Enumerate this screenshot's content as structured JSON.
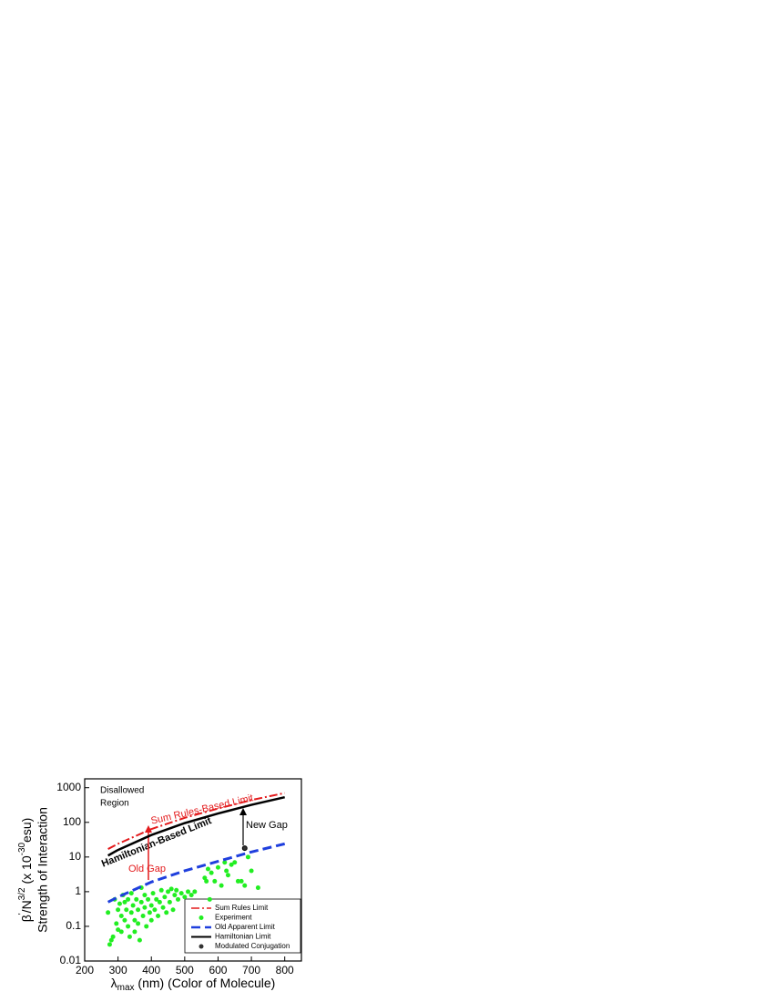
{
  "chart_data": {
    "type": "line",
    "y_label_parts": [
      "β",
      "'",
      "/N",
      "3/2",
      " (x 10",
      "-30",
      "esu)"
    ],
    "y_label_2": "Strength of Interaction",
    "x_label_parts": [
      "λ",
      "max",
      " (nm) (Color of Molecule)"
    ],
    "xlim": [
      200,
      850
    ],
    "xticks": [
      200,
      300,
      400,
      500,
      600,
      700,
      800
    ],
    "ylim": [
      0.01,
      1800
    ],
    "yticks": [
      0.01,
      0.1,
      1,
      10,
      100,
      1000
    ],
    "log_y": true,
    "legend": "lower right",
    "annotations": {
      "disallowed": [
        "Disallowed",
        "Region"
      ],
      "sum_rules": "Sum Rules-Based Limit",
      "hamiltonian": "Hamiltonian-Based Limit",
      "old_gap": "Old Gap",
      "new_gap": "New Gap"
    },
    "series": [
      {
        "name": "Sum Rules Limit",
        "kind": "line",
        "dash": "dashdot",
        "color": "#e31a1c",
        "x": [
          270,
          300,
          400,
          500,
          600,
          700,
          800
        ],
        "values": [
          17,
          24,
          64,
          135,
          250,
          440,
          700
        ]
      },
      {
        "name": "Experiment",
        "kind": "scatter",
        "color": "#22ee22",
        "x": [
          270,
          275,
          280,
          285,
          290,
          295,
          300,
          300,
          305,
          310,
          310,
          315,
          320,
          320,
          325,
          330,
          330,
          335,
          340,
          340,
          345,
          350,
          350,
          355,
          360,
          360,
          365,
          370,
          370,
          375,
          380,
          380,
          385,
          390,
          395,
          400,
          400,
          405,
          410,
          415,
          420,
          425,
          430,
          435,
          440,
          445,
          450,
          455,
          460,
          465,
          470,
          475,
          480,
          490,
          500,
          510,
          520,
          530,
          560,
          565,
          570,
          575,
          580,
          590,
          600,
          610,
          620,
          625,
          630,
          640,
          650,
          660,
          670,
          680,
          690,
          700,
          720
        ],
        "values": [
          0.25,
          0.03,
          0.04,
          0.05,
          0.6,
          0.12,
          0.08,
          0.3,
          0.45,
          0.07,
          0.2,
          0.8,
          0.5,
          0.15,
          0.3,
          0.1,
          0.6,
          0.05,
          0.25,
          0.9,
          0.4,
          0.15,
          0.07,
          0.6,
          0.3,
          0.12,
          0.04,
          0.5,
          1.3,
          0.2,
          0.8,
          0.35,
          0.1,
          0.6,
          0.25,
          0.4,
          0.15,
          0.9,
          0.3,
          0.6,
          0.2,
          0.5,
          1.1,
          0.35,
          0.7,
          0.25,
          1.0,
          0.5,
          1.2,
          0.3,
          0.8,
          1.1,
          0.6,
          0.9,
          0.7,
          1.0,
          0.8,
          1.0,
          2.5,
          2,
          4.5,
          0.6,
          3.5,
          2,
          5,
          1.5,
          7,
          4,
          3,
          6,
          7,
          2,
          2,
          1.5,
          10,
          4,
          1.3
        ]
      },
      {
        "name": "Old Apparent Limit",
        "kind": "line",
        "dash": "dash",
        "color": "#1f3fdd",
        "x": [
          270,
          300,
          400,
          500,
          600,
          700,
          800
        ],
        "values": [
          0.5,
          0.7,
          1.9,
          4,
          7.5,
          14,
          24
        ]
      },
      {
        "name": "Hamiltonian Limit",
        "kind": "line",
        "dash": "solid",
        "color": "#000000",
        "x": [
          270,
          300,
          400,
          500,
          600,
          700,
          800
        ],
        "values": [
          11,
          16,
          43,
          95,
          180,
          320,
          530
        ]
      },
      {
        "name": "Modulated Conjugation",
        "kind": "scatter",
        "color": "#333333",
        "x": [
          680
        ],
        "values": [
          18
        ]
      }
    ]
  }
}
